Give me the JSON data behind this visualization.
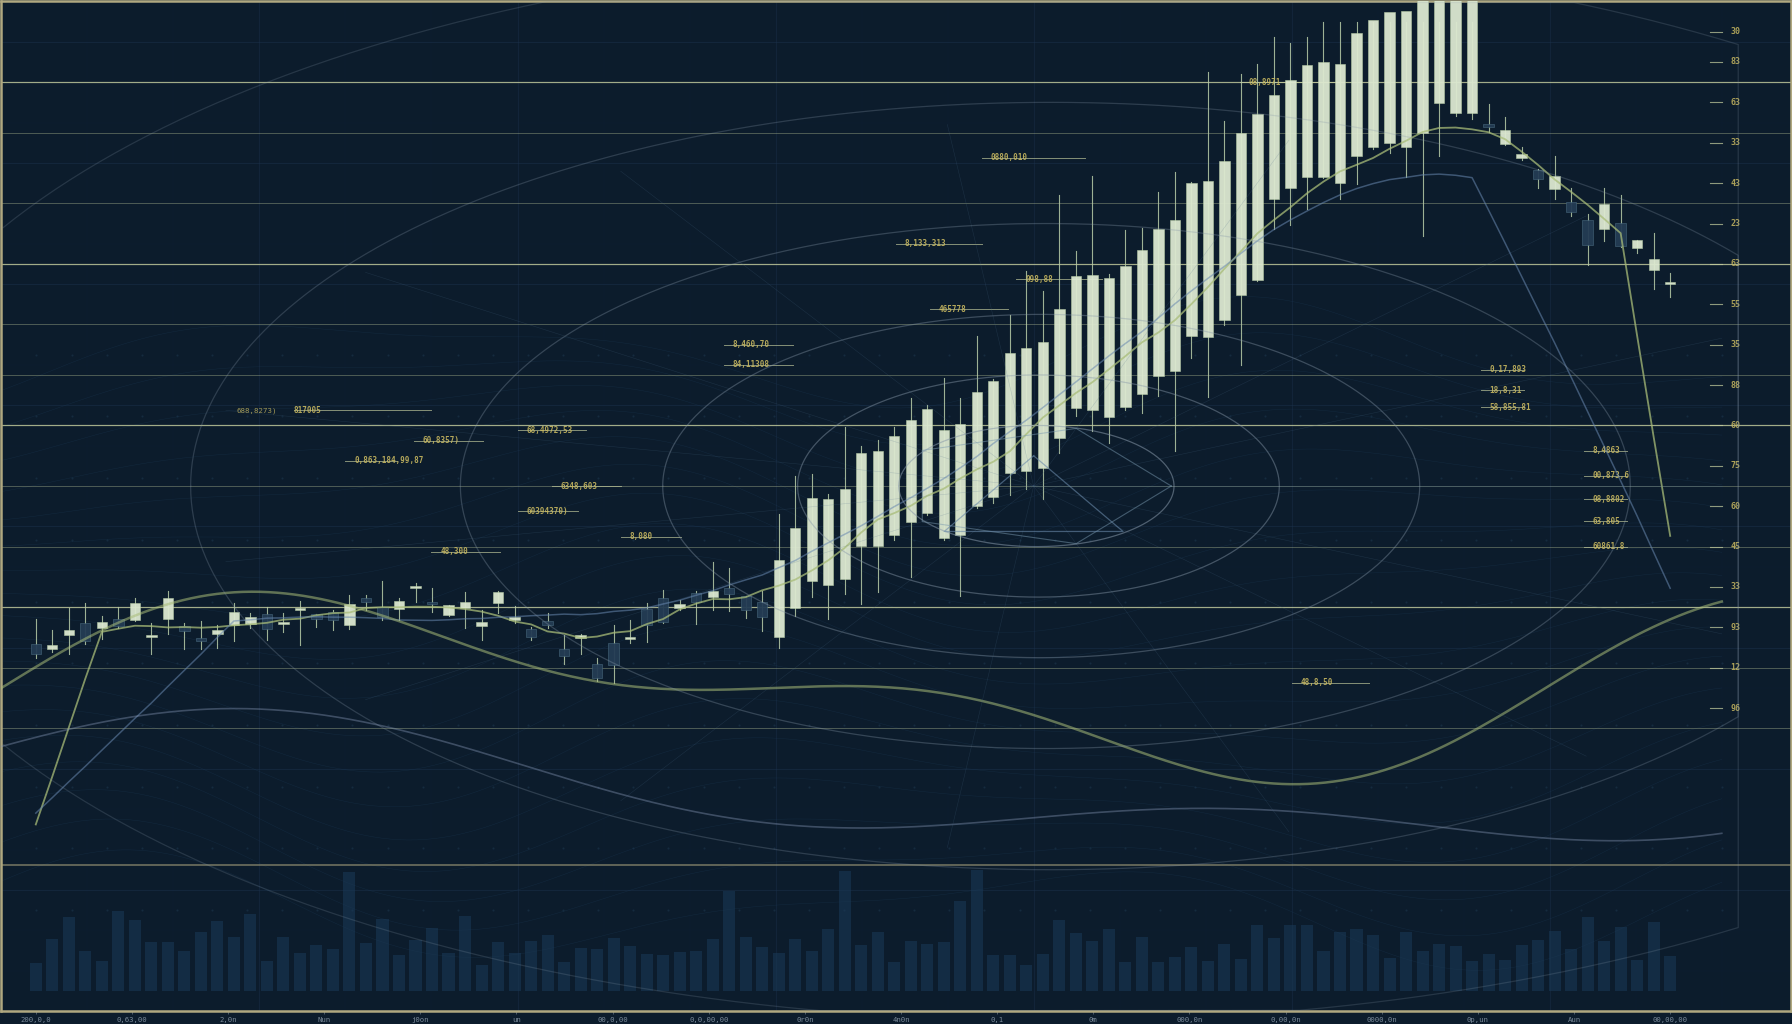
{
  "background_color": "#0c1c2c",
  "grid_color_major": "#1e3550",
  "grid_color_minor": "#162840",
  "candle_bull": "#dce8d0",
  "candle_bear": "#243c54",
  "candle_shadow": "#b8cca8",
  "candle_bear_edge": "#4a6a80",
  "line_color": "#c8d0a0",
  "annotation_color": "#c8b860",
  "axis_color": "#7a8a9a",
  "border_color": "#b0a880",
  "wave_color1": "#a8bc78",
  "wave_color2": "#6888b0",
  "circle_color": "#8899aa",
  "mesh_color": "#1e4060",
  "volume_color": "#1a3a58",
  "figsize": [
    17.92,
    10.24
  ],
  "dpi": 100,
  "x_labels": [
    "200,0,0",
    "0,63,00",
    "2,0n",
    "Nun",
    "j0on",
    "un",
    "00,0,00",
    "0,0,00,00",
    "0r0n",
    "4n0n",
    "0,1",
    "0m",
    "000,0n",
    "0,00,0n",
    "0000,0n",
    "0p,un",
    "Aun",
    "00,00,00"
  ],
  "ann_left": [
    [
      18,
      0.61,
      "817005"
    ],
    [
      25,
      0.57,
      "60,8357"
    ],
    [
      22,
      0.555,
      "0,863,184,99,87"
    ],
    [
      29,
      0.53,
      "60,8357)"
    ],
    [
      38,
      0.52,
      "68,4972,53"
    ],
    [
      33,
      0.5,
      "6348,603"
    ],
    [
      35,
      0.46,
      "60394370)"
    ],
    [
      28,
      0.425,
      "48,300"
    ],
    [
      39,
      0.44,
      "8,080"
    ]
  ],
  "ann_mid": [
    [
      48,
      0.73,
      "0880,010"
    ],
    [
      52,
      0.66,
      "8,133,313"
    ],
    [
      58,
      0.615,
      "098,88"
    ],
    [
      55,
      0.6,
      "465778"
    ],
    [
      46,
      0.575,
      "8,460,70"
    ],
    [
      46,
      0.555,
      "84,11308"
    ],
    [
      32,
      0.595,
      "688,8273)"
    ]
  ],
  "ann_top": [
    [
      73,
      0.92,
      "08,8971"
    ]
  ],
  "ann_right": [
    [
      89,
      0.625,
      "0,17,893"
    ],
    [
      89,
      0.605,
      "18,8,31"
    ],
    [
      89,
      0.585,
      "58,855,81"
    ],
    [
      96,
      0.545,
      "8,4863"
    ],
    [
      96,
      0.515,
      "00,873,6"
    ],
    [
      96,
      0.49,
      "08,8802"
    ],
    [
      96,
      0.47,
      "63,805"
    ],
    [
      96,
      0.44,
      "60861,8"
    ],
    [
      78,
      0.33,
      "48,8,50"
    ]
  ],
  "right_ticks": [
    [
      0.97,
      "30"
    ],
    [
      0.94,
      "83"
    ],
    [
      0.9,
      "63"
    ],
    [
      0.86,
      "33"
    ],
    [
      0.82,
      "43"
    ],
    [
      0.78,
      "23"
    ],
    [
      0.74,
      "63"
    ],
    [
      0.7,
      "55"
    ],
    [
      0.66,
      "35"
    ],
    [
      0.62,
      "88"
    ],
    [
      0.58,
      "60"
    ],
    [
      0.54,
      "75"
    ],
    [
      0.5,
      "60"
    ],
    [
      0.46,
      "45"
    ],
    [
      0.42,
      "33"
    ],
    [
      0.38,
      "93"
    ],
    [
      0.34,
      "12"
    ],
    [
      0.3,
      "96"
    ]
  ]
}
